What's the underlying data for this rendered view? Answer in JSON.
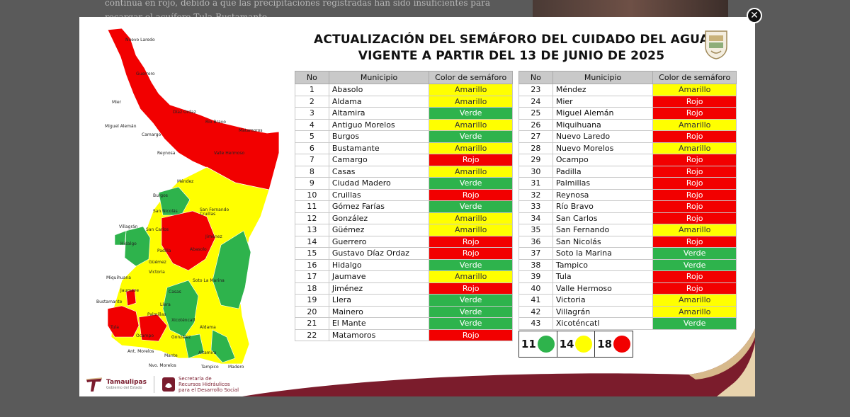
{
  "background": {
    "snippet": "continúa en rojo, debido a que las precipitaciones registradas han sido insuficientes para recargar el acuífero Tula-Bustamante."
  },
  "modal": {
    "close_icon": "close-icon",
    "title_line1": "ACTUALIZACIÓN DEL SEMÁFORO DEL CUIDADO DEL AGUA",
    "title_line2": "VIGENTE A PARTIR DEL 13 DE JUNIO DE 2025",
    "headers": {
      "no": "No",
      "municipio": "Municipio",
      "color": "Color de semáforo"
    },
    "colors": {
      "Amarillo": "#ffff00",
      "Verde": "#2eb34c",
      "Rojo": "#f20000"
    },
    "table_left": [
      {
        "no": "1",
        "m": "Abasolo",
        "c": "Amarillo"
      },
      {
        "no": "2",
        "m": "Aldama",
        "c": "Amarillo"
      },
      {
        "no": "3",
        "m": "Altamira",
        "c": "Verde"
      },
      {
        "no": "4",
        "m": "Antiguo Morelos",
        "c": "Amarillo"
      },
      {
        "no": "5",
        "m": "Burgos",
        "c": "Verde"
      },
      {
        "no": "6",
        "m": "Bustamante",
        "c": "Amarillo"
      },
      {
        "no": "7",
        "m": "Camargo",
        "c": "Rojo"
      },
      {
        "no": "8",
        "m": "Casas",
        "c": "Amarillo"
      },
      {
        "no": "9",
        "m": "Ciudad Madero",
        "c": "Verde"
      },
      {
        "no": "10",
        "m": "Cruillas",
        "c": "Rojo"
      },
      {
        "no": "11",
        "m": "Gómez Farías",
        "c": "Verde"
      },
      {
        "no": "12",
        "m": "González",
        "c": "Amarillo"
      },
      {
        "no": "13",
        "m": "Güémez",
        "c": "Amarillo"
      },
      {
        "no": "14",
        "m": "Guerrero",
        "c": "Rojo"
      },
      {
        "no": "15",
        "m": "Gustavo Díaz Ordaz",
        "c": "Rojo"
      },
      {
        "no": "16",
        "m": "Hidalgo",
        "c": "Verde"
      },
      {
        "no": "17",
        "m": "Jaumave",
        "c": "Amarillo"
      },
      {
        "no": "18",
        "m": "Jiménez",
        "c": "Rojo"
      },
      {
        "no": "19",
        "m": "Llera",
        "c": "Verde"
      },
      {
        "no": "20",
        "m": "Mainero",
        "c": "Verde"
      },
      {
        "no": "21",
        "m": "El Mante",
        "c": "Verde"
      },
      {
        "no": "22",
        "m": "Matamoros",
        "c": "Rojo"
      }
    ],
    "table_right": [
      {
        "no": "23",
        "m": "Méndez",
        "c": "Amarillo"
      },
      {
        "no": "24",
        "m": "Mier",
        "c": "Rojo"
      },
      {
        "no": "25",
        "m": "Miguel Alemán",
        "c": "Rojo"
      },
      {
        "no": "26",
        "m": "Miquihuana",
        "c": "Amarillo"
      },
      {
        "no": "27",
        "m": "Nuevo Laredo",
        "c": "Rojo"
      },
      {
        "no": "28",
        "m": "Nuevo Morelos",
        "c": "Amarillo"
      },
      {
        "no": "29",
        "m": "Ocampo",
        "c": "Rojo"
      },
      {
        "no": "30",
        "m": "Padilla",
        "c": "Rojo"
      },
      {
        "no": "31",
        "m": "Palmillas",
        "c": "Rojo"
      },
      {
        "no": "32",
        "m": "Reynosa",
        "c": "Rojo"
      },
      {
        "no": "33",
        "m": "Río Bravo",
        "c": "Rojo"
      },
      {
        "no": "34",
        "m": "San Carlos",
        "c": "Rojo"
      },
      {
        "no": "35",
        "m": "San Fernando",
        "c": "Amarillo"
      },
      {
        "no": "36",
        "m": "San Nicolás",
        "c": "Rojo"
      },
      {
        "no": "37",
        "m": "Soto la Marina",
        "c": "Verde"
      },
      {
        "no": "38",
        "m": "Tampico",
        "c": "Verde"
      },
      {
        "no": "39",
        "m": "Tula",
        "c": "Rojo"
      },
      {
        "no": "40",
        "m": "Valle Hermoso",
        "c": "Rojo"
      },
      {
        "no": "41",
        "m": "Victoria",
        "c": "Amarillo"
      },
      {
        "no": "42",
        "m": "Villagrán",
        "c": "Amarillo"
      },
      {
        "no": "43",
        "m": "Xicoténcatl",
        "c": "Verde"
      }
    ],
    "tally": {
      "verde": "11",
      "amarillo": "14",
      "rojo": "18"
    },
    "map_labels": [
      "Nuevo Laredo",
      "Guerrero",
      "Mier",
      "Díaz Ordaz",
      "Río Bravo",
      "Matamoros",
      "Miguel Alemán",
      "Camargo",
      "Reynosa",
      "Valle Hermoso",
      "Méndez",
      "Burgos",
      "San Fernando",
      "San Nicolás",
      "Cruillas",
      "Villagrán",
      "San Carlos",
      "Jiménez",
      "Hidalgo",
      "Padilla",
      "Abasolo",
      "Güémez",
      "Miquihuana",
      "Victoria",
      "Soto La Marina",
      "Jaumave",
      "Casas",
      "Bustamante",
      "Llera",
      "Palmillas",
      "Xicoténcatl",
      "Tula",
      "Ocampo",
      "González",
      "Aldama",
      "Mante",
      "Altamira",
      "Ant. Morelos",
      "Nvo. Morelos",
      "Tampico",
      "Madero"
    ],
    "footer": {
      "logo1": "Tamaulipas",
      "logo1_sub": "Gobierno del Estado",
      "logo2_l1": "Secretaría de",
      "logo2_l2": "Recursos Hidráulicos",
      "logo2_l3": "para el Desarrollo Social"
    }
  }
}
